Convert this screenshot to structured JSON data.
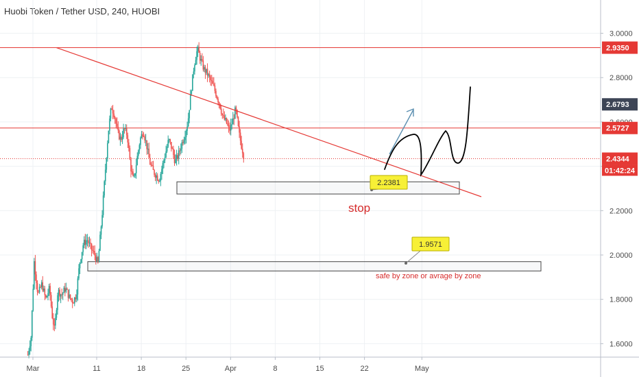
{
  "header": {
    "title": "Huobi Token / Tether USD, 240, HUOBI"
  },
  "chart_data": {
    "type": "candlestick",
    "symbol": "Huobi Token / Tether USD",
    "interval": "240",
    "exchange": "HUOBI",
    "ylim": [
      1.52,
      3.08
    ],
    "y_ticks": [
      "1.6000",
      "1.8000",
      "2.0000",
      "2.2000",
      "2.4000",
      "2.6000",
      "2.8000",
      "3.0000"
    ],
    "x_ticks": [
      "Mar",
      "11",
      "18",
      "25",
      "Apr",
      "8",
      "15",
      "22",
      "May"
    ],
    "price_badges": [
      {
        "label": "2.9350",
        "value": 2.935,
        "color": "#e53935"
      },
      {
        "label": "2.6793",
        "value": 2.6793,
        "color": "#3d4556"
      },
      {
        "label": "2.5727",
        "value": 2.5727,
        "color": "#e53935"
      },
      {
        "label": "2.4344",
        "value": 2.4344,
        "color": "#e53935"
      }
    ],
    "countdown": "01:42:24",
    "horizontal_lines": [
      {
        "value": 2.935,
        "style": "solid",
        "color": "#e53935"
      },
      {
        "value": 2.5727,
        "style": "solid",
        "color": "#e53935"
      },
      {
        "value": 2.4344,
        "style": "dotted",
        "color": "#e53935"
      }
    ],
    "zones": [
      {
        "top": 2.33,
        "bottom": 2.275
      },
      {
        "top": 1.97,
        "bottom": 1.928
      }
    ],
    "callouts": [
      {
        "label": "2.2381",
        "value": 2.2381
      },
      {
        "label": "1.9571",
        "value": 1.9571
      }
    ],
    "annotations": {
      "stop": "stop",
      "safe_zone": "safe by zone  or avrage by zone"
    },
    "trend_line": {
      "from": [
        3.7,
        2.935
      ],
      "to": [
        26.0,
        2.255
      ]
    },
    "price_path": [
      [
        -0.8,
        1.55
      ],
      [
        -0.3,
        1.63
      ],
      [
        0.2,
        1.97
      ],
      [
        0.8,
        1.82
      ],
      [
        1.4,
        1.87
      ],
      [
        2.0,
        1.8
      ],
      [
        2.6,
        1.85
      ],
      [
        3.0,
        1.73
      ],
      [
        3.4,
        1.66
      ],
      [
        3.9,
        1.84
      ],
      [
        4.5,
        1.82
      ],
      [
        5.1,
        1.85
      ],
      [
        5.7,
        1.81
      ],
      [
        6.3,
        1.79
      ],
      [
        6.8,
        1.82
      ],
      [
        7.3,
        1.96
      ],
      [
        7.9,
        2.05
      ],
      [
        8.5,
        2.07
      ],
      [
        9.1,
        2.03
      ],
      [
        9.7,
        2.0
      ],
      [
        10.2,
        1.96
      ],
      [
        10.9,
        2.2
      ],
      [
        11.4,
        2.4
      ],
      [
        11.8,
        2.55
      ],
      [
        12.3,
        2.67
      ],
      [
        12.8,
        2.63
      ],
      [
        13.3,
        2.55
      ],
      [
        13.8,
        2.52
      ],
      [
        14.3,
        2.57
      ],
      [
        14.8,
        2.54
      ],
      [
        15.3,
        2.4
      ],
      [
        15.8,
        2.33
      ],
      [
        16.3,
        2.43
      ],
      [
        16.8,
        2.52
      ],
      [
        17.3,
        2.56
      ],
      [
        17.8,
        2.5
      ],
      [
        18.3,
        2.42
      ],
      [
        18.8,
        2.38
      ],
      [
        19.3,
        2.36
      ],
      [
        19.8,
        2.34
      ],
      [
        20.3,
        2.4
      ],
      [
        20.8,
        2.46
      ],
      [
        21.3,
        2.52
      ],
      [
        21.8,
        2.48
      ],
      [
        22.3,
        2.42
      ],
      [
        22.8,
        2.45
      ],
      [
        23.3,
        2.5
      ],
      [
        23.8,
        2.54
      ],
      [
        24.3,
        2.6
      ],
      [
        24.8,
        2.74
      ],
      [
        25.3,
        2.86
      ],
      [
        25.8,
        2.93
      ],
      [
        26.3,
        2.88
      ],
      [
        26.8,
        2.84
      ],
      [
        27.3,
        2.82
      ],
      [
        27.8,
        2.79
      ],
      [
        28.3,
        2.76
      ],
      [
        28.8,
        2.72
      ],
      [
        29.3,
        2.68
      ],
      [
        29.8,
        2.62
      ],
      [
        30.3,
        2.6
      ],
      [
        30.8,
        2.56
      ],
      [
        31.3,
        2.6
      ],
      [
        31.8,
        2.66
      ],
      [
        32.3,
        2.55
      ],
      [
        32.8,
        2.48
      ],
      [
        33.2,
        2.4344
      ]
    ],
    "projection_paths": [
      [
        [
          12.4,
          2.66
        ],
        [
          13.2,
          2.78
        ]
      ],
      [
        [
          14.5,
          2.38
        ],
        [
          16.6,
          2.55
        ],
        [
          17.4,
          2.53
        ],
        [
          18.2,
          2.46
        ],
        [
          18.6,
          2.38
        ],
        [
          19.6,
          2.46
        ],
        [
          20.8,
          2.58
        ],
        [
          21.5,
          2.46
        ],
        [
          22.1,
          2.42
        ],
        [
          22.9,
          2.52
        ],
        [
          23.3,
          2.76
        ]
      ]
    ]
  }
}
